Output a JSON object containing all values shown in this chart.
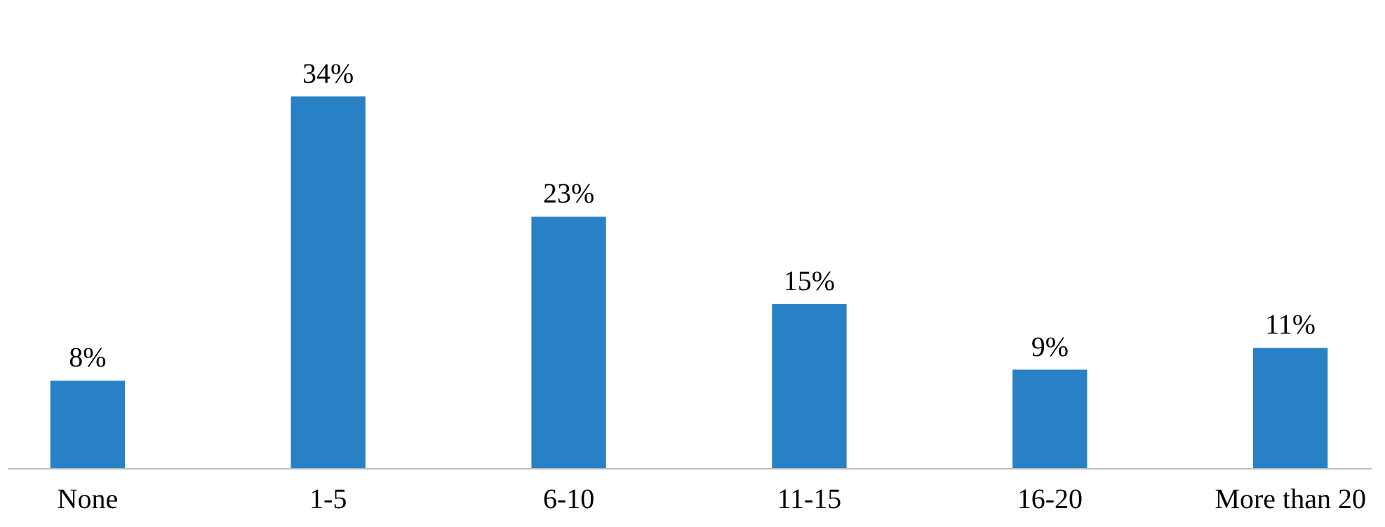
{
  "chart_data": {
    "type": "bar",
    "categories": [
      "None",
      "1-5",
      "6-10",
      "11-15",
      "16-20",
      "More than 20"
    ],
    "values": [
      8,
      34,
      23,
      15,
      9,
      11
    ],
    "value_labels": [
      "8%",
      "34%",
      "23%",
      "15%",
      "9%",
      "11%"
    ],
    "color": "#2881c4"
  }
}
